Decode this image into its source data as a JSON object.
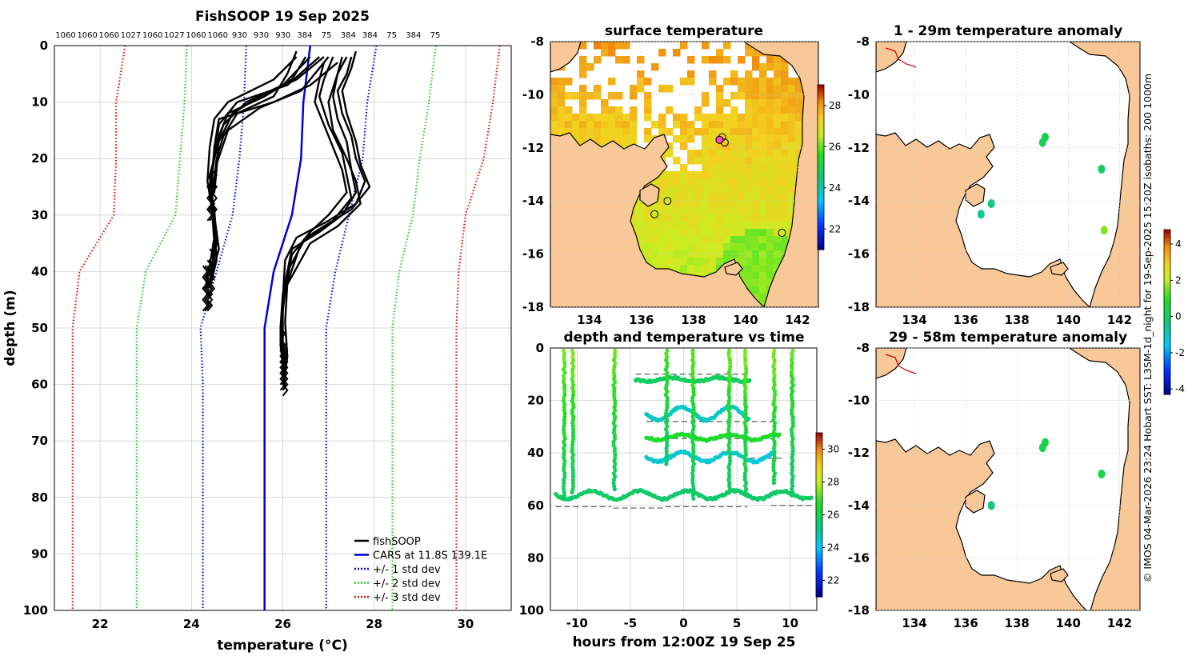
{
  "figure_title": "FishSOOP 19 Sep 2025",
  "side_credit": "© IMOS 04-Mar-2026 23:24 Hobart SST: L3SM-1d_night for 19-Sep-2025 15:20Z isobaths: 200 1000m",
  "colors": {
    "fishsoop": "#000000",
    "cars": "#0000dd",
    "std1": "#0000ee",
    "std2": "#22cc22",
    "std3": "#dd1100",
    "land": "#f8c898",
    "sea_missing": "#ffffff",
    "grid": "#d0d0d0"
  },
  "chart_data": [
    {
      "id": "profile",
      "type": "line",
      "title": "FishSOOP 19 Sep 2025",
      "xlabel": "temperature (°C)",
      "ylabel": "depth (m)",
      "xlim": [
        21,
        31
      ],
      "ylim": [
        0,
        100
      ],
      "y_reversed": true,
      "x_ticks": [
        22,
        24,
        26,
        28,
        30
      ],
      "y_ticks": [
        0,
        10,
        20,
        30,
        40,
        50,
        60,
        70,
        80,
        90,
        100
      ],
      "top_isobath_labels": [
        "1060",
        "1060",
        "1060",
        "1027",
        "1060",
        "1027",
        "1060",
        "1060",
        "930",
        "930",
        "930",
        "384",
        "75",
        "384",
        "384",
        "75",
        "384",
        "75"
      ],
      "depth_levels": [
        0,
        10,
        20,
        30,
        40,
        50,
        60,
        70,
        80,
        90,
        100
      ],
      "series": [
        {
          "name": "CARS at 11.8S 139.1E",
          "style": "solid",
          "color_key": "cars",
          "x": [
            26.6,
            26.45,
            26.4,
            26.2,
            25.8,
            25.6,
            25.6,
            25.6,
            25.6,
            25.6,
            25.6
          ]
        },
        {
          "name": "+/- 1 std dev",
          "style": "dotted",
          "color_key": "std1",
          "x": [
            25.2,
            25.15,
            25.05,
            24.9,
            24.55,
            24.2,
            24.25,
            24.25,
            24.25,
            24.25,
            24.25
          ]
        },
        {
          "name": "+/- 1 std dev upper",
          "style": "dotted",
          "color_key": "std1",
          "legend": false,
          "x": [
            28.05,
            27.85,
            27.75,
            27.45,
            27.15,
            26.95,
            26.95,
            26.95,
            26.95,
            26.95,
            26.95
          ]
        },
        {
          "name": "+/- 2 std dev",
          "style": "dotted",
          "color_key": "std2",
          "x": [
            23.9,
            23.85,
            23.75,
            23.65,
            23.0,
            22.8,
            22.8,
            22.8,
            22.8,
            22.8,
            22.8
          ]
        },
        {
          "name": "+/- 2 std dev upper",
          "style": "dotted",
          "color_key": "std2",
          "legend": false,
          "x": [
            29.35,
            29.2,
            29.0,
            28.85,
            28.55,
            28.4,
            28.4,
            28.4,
            28.4,
            28.4,
            28.4
          ]
        },
        {
          "name": "+/- 3 std dev",
          "style": "dotted",
          "color_key": "std3",
          "x": [
            22.55,
            22.35,
            22.35,
            22.3,
            21.55,
            21.4,
            21.4,
            21.4,
            21.4,
            21.4,
            21.4
          ]
        },
        {
          "name": "+/- 3 std dev upper",
          "style": "dotted",
          "color_key": "std3",
          "legend": false,
          "x": [
            30.75,
            30.6,
            30.4,
            30.0,
            29.85,
            29.8,
            29.8,
            29.8,
            29.8,
            29.8,
            29.8
          ]
        }
      ],
      "fishsoop_profiles": {
        "name": "fishSOOP",
        "color_key": "fishsoop",
        "shallow_casts": [
          {
            "depth": [
              2,
              6,
              10,
              13,
              18,
              24,
              29,
              35,
              40,
              43
            ],
            "temp": [
              26.3,
              25.8,
              24.8,
              24.5,
              24.4,
              24.35,
              24.45,
              24.5,
              24.45,
              24.35
            ]
          },
          {
            "depth": [
              2,
              7,
              10,
              14,
              19,
              25,
              30,
              36,
              42
            ],
            "temp": [
              26.6,
              26.0,
              25.2,
              24.7,
              24.5,
              24.4,
              24.5,
              24.6,
              24.4
            ]
          },
          {
            "depth": [
              2,
              6,
              9,
              12,
              17,
              23,
              28,
              34,
              39,
              43
            ],
            "temp": [
              26.9,
              26.3,
              25.5,
              24.9,
              24.6,
              24.4,
              24.45,
              24.5,
              24.4,
              24.3
            ]
          },
          {
            "depth": [
              3,
              7,
              10,
              13,
              18,
              24,
              27
            ],
            "temp": [
              27.2,
              26.6,
              25.8,
              24.6,
              24.5,
              24.45,
              24.4
            ]
          },
          {
            "depth": [
              2,
              6,
              9,
              12,
              16,
              22,
              26
            ],
            "temp": [
              26.5,
              26.2,
              25.6,
              24.8,
              24.6,
              24.55,
              24.5
            ]
          },
          {
            "depth": [
              2,
              7,
              10,
              14,
              20,
              25,
              29,
              35,
              40
            ],
            "temp": [
              26.8,
              26.1,
              25.0,
              24.6,
              24.5,
              24.4,
              24.5,
              24.55,
              24.45
            ]
          },
          {
            "depth": [
              1,
              5,
              9,
              12,
              16,
              20,
              24,
              27
            ],
            "temp": [
              26.3,
              26.1,
              25.8,
              25.0,
              24.7,
              24.55,
              24.5,
              24.45
            ]
          },
          {
            "depth": [
              2,
              8,
              11,
              15,
              21,
              26,
              31,
              38,
              43
            ],
            "temp": [
              27.0,
              26.4,
              25.5,
              24.8,
              24.55,
              24.45,
              24.5,
              24.55,
              24.4
            ]
          }
        ],
        "deep_casts": [
          {
            "depth": [
              2,
              5,
              8,
              12,
              16,
              20,
              24,
              28,
              31,
              34,
              38,
              45,
              52,
              57
            ],
            "temp": [
              27.5,
              27.4,
              27.2,
              27.3,
              27.5,
              27.6,
              27.8,
              27.6,
              27.0,
              26.3,
              26.05,
              26.0,
              25.95,
              26.0
            ]
          },
          {
            "depth": [
              2,
              5,
              9,
              13,
              17,
              22,
              26,
              30,
              33,
              36,
              44,
              50,
              56
            ],
            "temp": [
              27.3,
              27.2,
              27.1,
              27.2,
              27.4,
              27.5,
              27.6,
              27.3,
              26.8,
              26.2,
              26.0,
              25.95,
              26.0
            ]
          },
          {
            "depth": [
              1,
              4,
              8,
              12,
              17,
              21,
              25,
              29,
              32,
              35,
              42,
              49,
              55,
              58
            ],
            "temp": [
              27.6,
              27.5,
              27.3,
              27.4,
              27.6,
              27.7,
              27.9,
              27.5,
              26.9,
              26.4,
              26.1,
              26.05,
              26.1,
              26.05
            ]
          },
          {
            "depth": [
              2,
              6,
              9,
              14,
              19,
              23,
              27,
              31,
              34,
              40,
              47,
              54
            ],
            "temp": [
              27.1,
              26.9,
              26.8,
              27.0,
              27.3,
              27.4,
              27.5,
              27.1,
              26.5,
              26.1,
              26.0,
              26.0
            ]
          },
          {
            "depth": [
              2,
              5,
              10,
              15,
              20,
              24,
              28,
              32,
              35,
              43,
              51,
              57
            ],
            "temp": [
              27.4,
              27.2,
              27.0,
              27.1,
              27.4,
              27.6,
              27.7,
              27.2,
              26.6,
              26.05,
              25.95,
              26.05
            ]
          },
          {
            "depth": [
              3,
              6,
              10,
              14,
              18,
              22,
              26,
              30,
              33,
              37,
              46,
              53,
              56
            ],
            "temp": [
              26.9,
              26.8,
              26.7,
              26.9,
              27.1,
              27.3,
              27.4,
              27.0,
              26.6,
              26.2,
              26.0,
              25.95,
              26.0
            ]
          }
        ]
      },
      "legend_position": "bottom-right"
    },
    {
      "id": "sst_map",
      "type": "heatmap",
      "title": "surface temperature",
      "xlim": [
        132.5,
        142.8
      ],
      "ylim": [
        -18,
        -8
      ],
      "x_ticks": [
        134,
        136,
        138,
        140,
        142
      ],
      "y_ticks": [
        -8,
        -10,
        -12,
        -14,
        -16,
        -18
      ],
      "colorbar": {
        "range": [
          21,
          29
        ],
        "ticks": [
          22,
          24,
          26,
          28
        ]
      },
      "cast_positions": [
        {
          "lon": 139.1,
          "lat": -11.6
        },
        {
          "lon": 139.2,
          "lat": -11.8
        },
        {
          "lon": 137.0,
          "lat": -14.0
        },
        {
          "lon": 136.5,
          "lat": -14.5
        },
        {
          "lon": 141.4,
          "lat": -15.2
        },
        {
          "lon": 139.0,
          "lat": -11.7
        }
      ]
    },
    {
      "id": "time_depth",
      "type": "scatter",
      "title": "depth and temperature vs time",
      "xlabel": "hours from 12:00Z 19 Sep 25",
      "xlim": [
        -12.5,
        12.5
      ],
      "ylim": [
        0,
        100
      ],
      "y_reversed": true,
      "x_ticks": [
        -10,
        -5,
        0,
        5,
        10
      ],
      "y_ticks": [
        0,
        20,
        40,
        60,
        80,
        100
      ],
      "colorbar": {
        "range": [
          21,
          31
        ],
        "ticks": [
          22,
          24,
          26,
          28,
          30
        ]
      },
      "bottom_depth_segments": [
        {
          "t0": -12,
          "t1": -6.8,
          "depth": 60.5
        },
        {
          "t0": -6.6,
          "t1": -1.8,
          "depth": 61
        },
        {
          "t0": -1.7,
          "t1": 6,
          "depth": 60.5
        },
        {
          "t0": 8.2,
          "t1": 12,
          "depth": 60
        }
      ],
      "casts": [
        {
          "t": -11.2,
          "bottom": 57,
          "surface_temp": 27.5
        },
        {
          "t": -10.4,
          "bottom": 56,
          "surface_temp": 27.6
        },
        {
          "t": -6.5,
          "bottom": 55,
          "surface_temp": 27.4
        },
        {
          "t": -1.6,
          "bottom": 45,
          "surface_temp": 27.2
        },
        {
          "t": 0.9,
          "bottom": 58,
          "surface_temp": 27.3
        },
        {
          "t": 4.3,
          "bottom": 54,
          "surface_temp": 27.4
        },
        {
          "t": 5.8,
          "bottom": 56,
          "surface_temp": 27.5
        },
        {
          "t": 8.5,
          "bottom": 52,
          "surface_temp": 27.6
        },
        {
          "t": 10.2,
          "bottom": 57,
          "surface_temp": 27.3
        }
      ],
      "tracks": [
        {
          "t0": -4.5,
          "t1": 6.2,
          "depth_mean": 12,
          "amp": 0.7,
          "temp": 25.8
        },
        {
          "t0": -3.5,
          "t1": 6.2,
          "depth_mean": 25,
          "amp": 2.5,
          "temp": 24.6
        },
        {
          "t0": -3.5,
          "t1": 9.0,
          "depth_mean": 34,
          "amp": 1.0,
          "temp": 26.6
        },
        {
          "t0": -3.5,
          "t1": 8.5,
          "depth_mean": 41.5,
          "amp": 1.8,
          "temp": 24.5
        },
        {
          "t0": -12,
          "t1": 12,
          "depth_mean": 56,
          "amp": 1.5,
          "temp": 25.6
        }
      ],
      "reference_dashes": [
        {
          "t0": -4.5,
          "t1": 6.2,
          "depth": 10
        },
        {
          "t0": -3.5,
          "t1": 9.0,
          "depth": 28
        },
        {
          "t0": -3.5,
          "t1": 9.0,
          "depth": 34.5
        },
        {
          "t0": 6.2,
          "t1": 9.5,
          "depth": 42
        }
      ]
    },
    {
      "id": "anom_map_1",
      "type": "heatmap",
      "title": "1 - 29m temperature anomaly",
      "xlim": [
        132.5,
        142.8
      ],
      "ylim": [
        -18,
        -8
      ],
      "x_ticks": [
        134,
        136,
        138,
        140,
        142
      ],
      "y_ticks": [
        -8,
        -10,
        -12,
        -14,
        -16,
        -18
      ],
      "colorbar": {
        "range": [
          -4.3,
          4.8
        ],
        "ticks": [
          -4,
          -2,
          0,
          2,
          4
        ]
      },
      "anomaly_points": [
        {
          "lon": 139.1,
          "lat": -11.6,
          "value": 0.3
        },
        {
          "lon": 139.0,
          "lat": -11.8,
          "value": 0.2
        },
        {
          "lon": 141.3,
          "lat": -12.8,
          "value": 0.1
        },
        {
          "lon": 137.0,
          "lat": -14.1,
          "value": -0.4
        },
        {
          "lon": 136.6,
          "lat": -14.5,
          "value": -0.6
        },
        {
          "lon": 141.4,
          "lat": -15.1,
          "value": 1.6
        }
      ]
    },
    {
      "id": "anom_map_2",
      "type": "heatmap",
      "title": "29 - 58m temperature anomaly",
      "xlim": [
        132.5,
        142.8
      ],
      "ylim": [
        -18,
        -8
      ],
      "x_ticks": [
        134,
        136,
        138,
        140,
        142
      ],
      "y_ticks": [
        -8,
        -10,
        -12,
        -14,
        -16,
        -18
      ],
      "anomaly_points": [
        {
          "lon": 139.1,
          "lat": -11.6,
          "value": 0.4
        },
        {
          "lon": 139.0,
          "lat": -11.8,
          "value": 0.3
        },
        {
          "lon": 141.3,
          "lat": -12.8,
          "value": 0.4
        },
        {
          "lon": 137.0,
          "lat": -14.0,
          "value": -0.3
        }
      ]
    }
  ]
}
